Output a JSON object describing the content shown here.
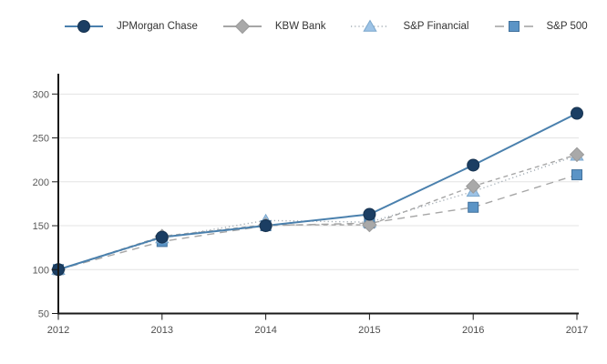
{
  "chart_data": {
    "type": "line",
    "title": "",
    "xlabel": "",
    "ylabel": "",
    "categories": [
      "2012",
      "2013",
      "2014",
      "2015",
      "2016",
      "2017"
    ],
    "yticks": [
      "50",
      "100",
      "150",
      "200",
      "250",
      "300"
    ],
    "ylim": [
      50,
      319
    ],
    "grid": "horizontal",
    "legend_position": "top",
    "series": [
      {
        "name": "JPMorgan Chase",
        "values": [
          100,
          137,
          150,
          163,
          219,
          278
        ],
        "line_style": "solid",
        "legend_line_style": "solid",
        "line_color": "#4a80ad",
        "marker": "circle",
        "marker_fill": "#1b3e63",
        "marker_stroke": "#16324f"
      },
      {
        "name": "KBW Bank",
        "values": [
          100,
          138,
          151,
          151,
          195,
          231
        ],
        "line_style": "dashed-short",
        "legend_line_style": "solid",
        "line_color": "#a6a6a6",
        "marker": "diamond",
        "marker_fill": "#a9a9a9",
        "marker_stroke": "#9a9a9a"
      },
      {
        "name": "S&P Financial",
        "values": [
          100,
          136,
          156,
          154,
          189,
          230
        ],
        "line_style": "dotted",
        "legend_line_style": "dotted",
        "line_color": "#a3adb5",
        "marker": "triangle",
        "marker_fill": "#9dc3e6",
        "marker_stroke": "#7ba7cc"
      },
      {
        "name": "S&P 500",
        "values": [
          100,
          132,
          150,
          153,
          171,
          208
        ],
        "line_style": "dashed-long",
        "legend_line_style": "dash-ends",
        "line_color": "#a6a6a6",
        "marker": "square",
        "marker_fill": "#5b94c6",
        "marker_stroke": "#41719c"
      }
    ],
    "colors": {
      "axis": "#1a1a1a",
      "gridline": "#e3e3e3",
      "background": "#ffffff"
    }
  }
}
